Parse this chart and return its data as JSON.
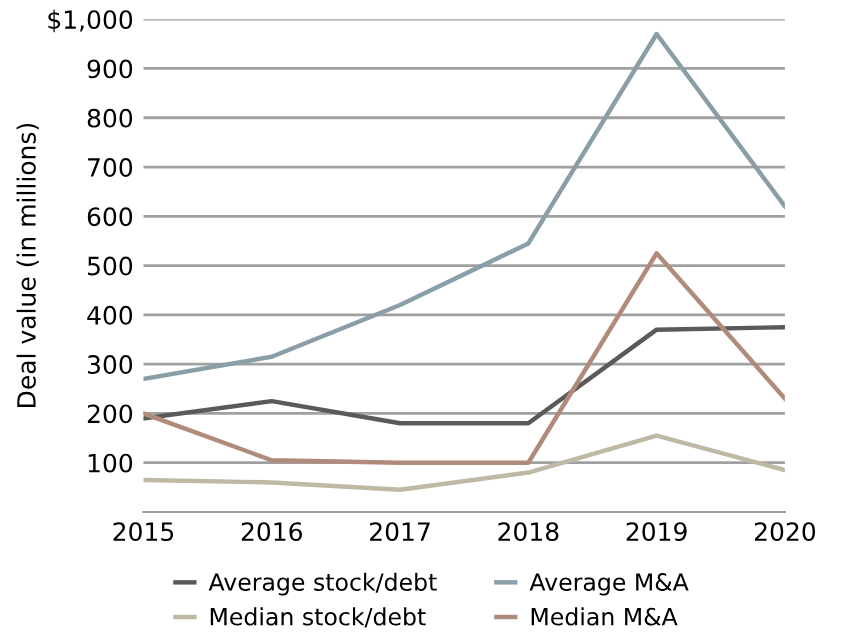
{
  "chart_data": {
    "type": "line",
    "ylabel": "Deal value (in millions)",
    "categories": [
      "2015",
      "2016",
      "2017",
      "2018",
      "2019",
      "2020"
    ],
    "ylim": [
      0,
      1000
    ],
    "yticks": [
      100,
      200,
      300,
      400,
      500,
      600,
      700,
      800,
      900,
      {
        "value": 1000,
        "label": "$1,000"
      }
    ],
    "grid": "y",
    "legend": "bottom",
    "marker": "none",
    "line_style": "solid",
    "series": [
      {
        "name": "Average stock/debt",
        "color": "#5a5a5a",
        "values": [
          190,
          225,
          180,
          180,
          370,
          375
        ]
      },
      {
        "name": "Average M&A",
        "color": "#8a9ea8",
        "values": [
          270,
          315,
          420,
          545,
          970,
          620
        ]
      },
      {
        "name": "Median stock/debt",
        "color": "#bdb9a5",
        "values": [
          65,
          60,
          45,
          80,
          155,
          85
        ]
      },
      {
        "name": "Median M&A",
        "color": "#b08b7c",
        "values": [
          200,
          105,
          100,
          100,
          525,
          230
        ]
      }
    ]
  }
}
